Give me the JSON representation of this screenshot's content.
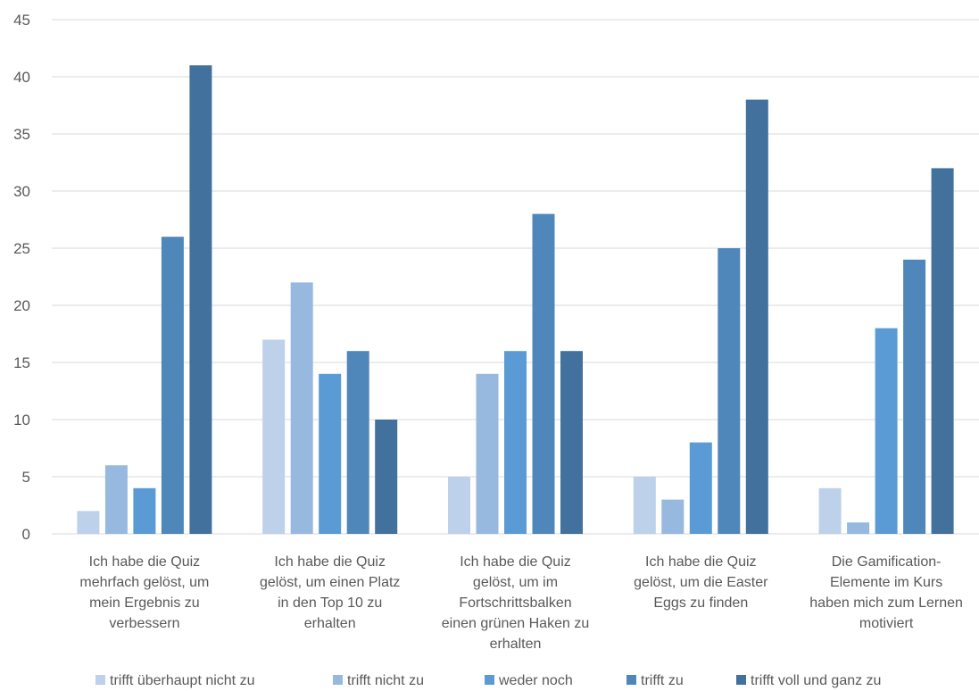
{
  "chart_data": {
    "type": "bar",
    "categories": [
      [
        "Ich habe die Quiz",
        "mehrfach gelöst, um",
        "mein Ergebnis zu",
        "verbessern"
      ],
      [
        "Ich habe die Quiz",
        "gelöst, um einen Platz",
        "in den Top 10 zu",
        "erhalten"
      ],
      [
        "Ich habe die Quiz",
        "gelöst, um im",
        "Fortschrittsbalken",
        "einen grünen Haken zu",
        "erhalten"
      ],
      [
        "Ich habe die Quiz",
        "gelöst, um die Easter",
        "Eggs zu finden"
      ],
      [
        "Die Gamification-",
        "Elemente im Kurs",
        "haben mich zum Lernen",
        "motiviert"
      ]
    ],
    "series": [
      {
        "name": "trifft überhaupt nicht zu",
        "color": "#bdd1ea",
        "values": [
          2,
          17,
          5,
          5,
          4
        ]
      },
      {
        "name": "trifft nicht zu",
        "color": "#97b9e0",
        "values": [
          6,
          22,
          14,
          3,
          1
        ]
      },
      {
        "name": "weder noch",
        "color": "#5b9bd5",
        "values": [
          4,
          14,
          16,
          8,
          18
        ]
      },
      {
        "name": "trifft zu",
        "color": "#4f87bb",
        "values": [
          26,
          16,
          28,
          25,
          24
        ]
      },
      {
        "name": "trifft voll und ganz zu",
        "color": "#41719c",
        "values": [
          41,
          10,
          16,
          38,
          32
        ]
      }
    ],
    "yticks": [
      "0",
      "5",
      "10",
      "15",
      "20",
      "25",
      "30",
      "35",
      "40",
      "45"
    ],
    "ylim": [
      0,
      45
    ],
    "grid": true,
    "legend_position": "bottom",
    "title": "",
    "xlabel": "",
    "ylabel": ""
  }
}
